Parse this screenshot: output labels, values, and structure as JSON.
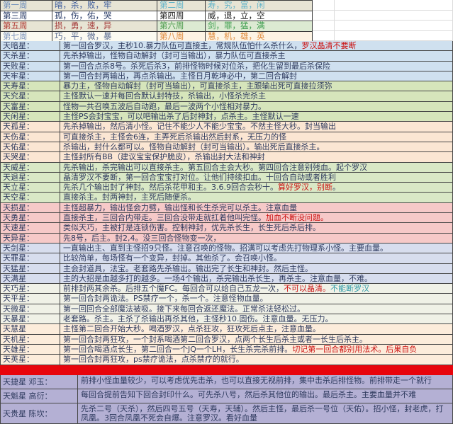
{
  "colors": {
    "text": "#2e3a5e",
    "red_text": "#cc1111",
    "teal_text": "#2e9aa8",
    "separator_red": "#e8040c",
    "grid_border": "#474747",
    "groups": {
      "g1": "#cfe0ef",
      "g2": "#d6e5bb",
      "g3": "#fbe6d3",
      "g4": "#d9e8c6",
      "g5": "#f6c9c8",
      "g6": "#d7ddee",
      "g7": "#f0f1e7",
      "g8": "#fcecdb",
      "boss": "#b4b0d4"
    }
  },
  "week_header": {
    "rows": [
      {
        "cells": [
          {
            "text": "第一周",
            "color": "#6b8cba",
            "bg": "#e7e4d4"
          },
          {
            "text": "暗，杀，败，牢",
            "color": "#3a5a9b",
            "bg": "#e7e4d4"
          },
          {
            "text": "第二周",
            "color": "#5fb3c9",
            "bg": "#e7e4d4"
          },
          {
            "text": "寿，究，富，闲",
            "color": "#5fb3c9",
            "bg": "#e7e4d4"
          }
        ]
      },
      {
        "cells": [
          {
            "text": "第三周",
            "color": "#273a66",
            "bg": "#ffffff"
          },
          {
            "text": "孤，伤，佑，哭",
            "color": "#273a66",
            "bg": "#ffffff"
          },
          {
            "text": "第四周",
            "color": "#1a1a1a",
            "bg": "#ffffff"
          },
          {
            "text": "威，退，立，空",
            "color": "#1a1a1a",
            "bg": "#ffffff"
          }
        ]
      },
      {
        "cells": [
          {
            "text": "第五周",
            "color": "#b03a34",
            "bg": "#e7e4d4"
          },
          {
            "text": "损，勇，速，异",
            "color": "#a33a3a",
            "bg": "#e7e4d4"
          },
          {
            "text": "第六周",
            "color": "#4c9a4c",
            "bg": "#dcead2"
          },
          {
            "text": "剑，罪，猛，满",
            "color": "#3f9e4f",
            "bg": "#dcead2"
          }
        ]
      },
      {
        "cells": [
          {
            "text": "第七周",
            "color": "#7b93bd",
            "bg": "#fbfaf1"
          },
          {
            "text": "巧，平，微，暴",
            "color": "#56688f",
            "bg": "#fbfaf1"
          },
          {
            "text": "第八周",
            "color": "#e08b3d",
            "bg": "#fdf3e4"
          },
          {
            "text": "慧，机，雄，英",
            "color": "#e08b3d",
            "bg": "#fdf3e4"
          }
        ]
      }
    ]
  },
  "stars": [
    {
      "name": "天暗星：",
      "group": "g1",
      "segments": [
        {
          "text": "第一回合罗汉，主秒10.暴力队伍可直接主，常规队伍怕什么杀什么，",
          "color": "normal"
        },
        {
          "text": "罗汉晶清不要断",
          "color": "red"
        }
      ]
    },
    {
      "name": "天杀星：",
      "group": "g1",
      "segments": [
        {
          "text": "先杀掉输出，怪物自动解封（封可当输出），暴力队伍可直接杀主",
          "color": "normal"
        }
      ]
    },
    {
      "name": "天败星：",
      "group": "g1",
      "segments": [
        {
          "text": "第一回合点杀8号。杀死后杀3，前排怪物时候对位杀，把化生留到最后杀保险",
          "color": "normal"
        }
      ]
    },
    {
      "name": "天牢星：",
      "group": "g1",
      "segments": [
        {
          "text": "第一回合封两输出，再点杀输出。主怪日月乾坤必中，第二回合解封",
          "color": "normal"
        }
      ]
    },
    {
      "name": "天寿星：",
      "group": "g2",
      "segments": [
        {
          "text": "暴力主，怪物自动解封（封可当输出），可直接杀主，主跟输出死可直接拉须弥",
          "color": "normal"
        }
      ]
    },
    {
      "name": "天究星：",
      "group": "g2",
      "segments": [
        {
          "text": "主怪默认一速并每回合默认封特技，杀输出，小怪杀完杀主",
          "color": "normal"
        }
      ]
    },
    {
      "name": "天富星：",
      "group": "g2",
      "segments": [
        {
          "text": "怪物一共召唤五波后自动跑，最后一波两个小怪相对暴力。",
          "color": "normal"
        }
      ]
    },
    {
      "name": "天闲星：",
      "group": "g2",
      "segments": [
        {
          "text": "主怪PS会封宝宝，可以吧输出杀了后封神封，点杀主。主怪默认一速",
          "color": "normal"
        }
      ]
    },
    {
      "name": "天孤星：",
      "group": "g3",
      "segments": [
        {
          "text": "先杀掉输出，然后清小怪。记住不能少人不能少宝宝。不然主怪大秒。封当输出",
          "color": "normal"
        }
      ]
    },
    {
      "name": "天伤星：",
      "group": "g3",
      "segments": [
        {
          "text": "可直接杀主，主怪会6连，主弄死后杀输出然后封系，无压力的怪",
          "color": "normal"
        }
      ]
    },
    {
      "name": "天佑星：",
      "group": "g3",
      "segments": [
        {
          "text": "杀输出，封什么都可以。怪物自动解封（封可当输出）。输出死后直接杀主。",
          "color": "normal"
        }
      ]
    },
    {
      "name": "天哭星：",
      "group": "g3",
      "segments": [
        {
          "text": "主怪封所有BB（建议宝宝保护脆皮），杀输出封大法和神封",
          "color": "normal"
        }
      ]
    },
    {
      "name": "天威星：",
      "group": "g4",
      "segments": [
        {
          "text": "先杀输出，杀完输出可以直接杀主。第五回合主会大秒。第四回合注意别残血。起个罗汉",
          "color": "normal"
        }
      ]
    },
    {
      "name": "天退星：",
      "group": "g4",
      "segments": [
        {
          "text": "晶清罗汉不要断，第一回合宝宝打对位。让他们持续扣血。十回合自动或者胜利",
          "color": "normal"
        }
      ]
    },
    {
      "name": "天立星：",
      "group": "g4",
      "segments": [
        {
          "text": "先杀几个输出封了神封。然后杀花甲和主。3.6.9回合会秒十。",
          "color": "normal"
        },
        {
          "text": "算好罗汉，别断",
          "color": "red"
        },
        {
          "text": "。",
          "color": "normal"
        }
      ]
    },
    {
      "name": "天空星：",
      "group": "g4",
      "segments": [
        {
          "text": "直接杀主。封两神封，主死后随便杀。",
          "color": "normal"
        }
      ]
    },
    {
      "name": "天损星：",
      "group": "g5",
      "segments": [
        {
          "text": "主怪超暴力，输出怪会力劈，输出怪和长生杀完可以杀主。注意血量",
          "color": "normal"
        }
      ]
    },
    {
      "name": "天勇星：",
      "group": "g5",
      "segments": [
        {
          "text": "直接杀主，三回合内带走。三回合没带走就扛着他叫完怪。",
          "color": "normal"
        },
        {
          "text": "加血不断没问题。",
          "color": "red"
        }
      ]
    },
    {
      "name": "天速星：",
      "group": "g5",
      "segments": [
        {
          "text": "类似天巧，主被打是连锁伤害。控制神封，优先杀长生，长生死后杀后排。",
          "color": "normal"
        }
      ]
    },
    {
      "name": "天异星：",
      "group": "g5",
      "segments": [
        {
          "text": "先8号，后主。封2,4。没三回合怪物变一次，",
          "color": "normal"
        }
      ]
    },
    {
      "name": "天剑星：",
      "group": "g6",
      "segments": [
        {
          "text": "一直输出主、直到主怪招9只怪。注意召唤的怪物。招满可以考虑先打物理系小怪。主要血量。",
          "color": "normal"
        }
      ]
    },
    {
      "name": "天罪星：",
      "group": "g6",
      "segments": [
        {
          "text": "比较简单，每场怪有一个变异，封掉。其他杀了。会召唤小怪。",
          "color": "normal"
        }
      ]
    },
    {
      "name": "天猛星：",
      "group": "g6",
      "segments": [
        {
          "text": "主会封道具，法宝。老套路先杀输出。输出完了长生和神封。然后主怪。",
          "color": "normal"
        }
      ]
    },
    {
      "name": "天满星",
      "group": "g6",
      "segments": [
        {
          "text": "主的大招是血越多打的越多。一场4个输出，杀完输出杀长生，再杀主。注意血量，不难。",
          "color": "normal"
        }
      ]
    },
    {
      "name": "天巧星：",
      "group": "g7",
      "segments": [
        {
          "text": "前排封两其余杀。后排五个魔FC。每回合可以给自己五龙一次，",
          "color": "normal"
        },
        {
          "text": "不可以晶清。",
          "color": "red"
        },
        {
          "text": "不能断罗汉",
          "color": "teal"
        }
      ]
    },
    {
      "name": "天平星：",
      "group": "g7",
      "segments": [
        {
          "text": "第一回合封两诡法。PS禁疗一个，杀一个。注意怪物血量。",
          "color": "normal"
        }
      ]
    },
    {
      "name": "天微星：",
      "group": "g7",
      "segments": [
        {
          "text": "第一回回合全部魔法被吸。接下来每回合返还魔法。正常杀法轻松过。",
          "color": "normal"
        }
      ]
    },
    {
      "name": "天暴星：",
      "group": "g7",
      "segments": [
        {
          "text": "老套路。杀主。主杀了杀输出再杀其他，主怪秒10.固伤。注意血量。无压力。",
          "color": "normal"
        }
      ]
    },
    {
      "name": "天慧星",
      "group": "g8",
      "segments": [
        {
          "text": "主怪第二回合开始大秒。喝酒罗汉，点杀狂攻，狂攻死后点主，注意血量。",
          "color": "normal"
        }
      ]
    },
    {
      "name": "天机星：",
      "group": "g8",
      "segments": [
        {
          "text": "第一回合封两狂攻，一个封系喝酒第二回合罗汉，点两个长生后杀主或者一长生后杀主。",
          "color": "normal"
        }
      ]
    },
    {
      "name": "天雄星：",
      "group": "g8",
      "segments": [
        {
          "text": "第一回合喝酒点长生，第二回合一个JQ一个LH，长生杀完杀前排。",
          "color": "normal"
        },
        {
          "text": "切记第一回合都别用法术。后果自负",
          "color": "red"
        }
      ]
    },
    {
      "name": "天英星：",
      "group": "g8",
      "segments": [
        {
          "text": "第一回合封两狂攻，ps禁疗诡法，点杀禁疗的就行。",
          "color": "normal"
        }
      ]
    }
  ],
  "bosses": [
    {
      "name": "天捷星 邓玉：",
      "desc": "前排小怪血量较少，可以考虑优先击杀，也可以直接无视前排，集中击杀后排怪物。前排带走一个就行"
    },
    {
      "name": "天魁星 高衍：",
      "desc": "每回合提前告知下回合封印什么。可先杀八号，然后杀其他位的输出。最后杀主。主要血量并不难"
    },
    {
      "name": "天贵星 陈坎：",
      "desc": "先杀二号（天杀），然后四号五号（天寿，天辅）。然后主怪，最后杀一号位（天佑）。招小怪，封老虎，打凤凰。3回合凤凰不死会自爆。注意罗汉。看好血量"
    }
  ]
}
